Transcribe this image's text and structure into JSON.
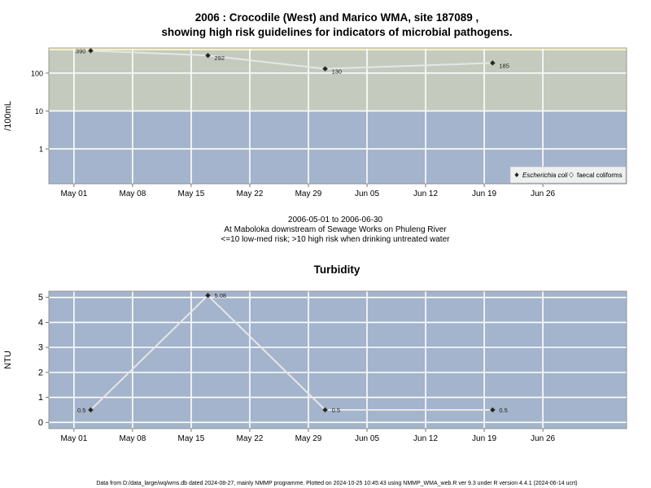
{
  "title_line1": "2006 : Crocodile (West) and Marico WMA, site 187089 ,",
  "title_line2": "showing high risk guidelines for indicators of microbial pathogens.",
  "subtitle": {
    "date_range": "2006-05-01 to 2006-06-30",
    "location": "At Maboloka downstream of Sewage Works on Phuleng River",
    "guideline": "<=10 low-med risk; >10 high risk when drinking untreated water"
  },
  "footer": "Data from D:/data_large/wq/wms.db dated 2024-08-27, mainly NMMP programme. Plotted on 2024-10-25 10:45:43 using NMMP_WMA_web.R ver 9.3 under R version 4.4.1 (2024-06-14 ucrt)",
  "colors": {
    "low_band": "#a3b4cc",
    "mid_band": "#c4cbbe",
    "high_band": "#f5f0c8",
    "line": "#e6e6e6",
    "grid": "#ffffff"
  },
  "chart_data": [
    {
      "type": "line",
      "ylabel": "/100mL",
      "yscale": "log",
      "yticks": [
        1,
        10,
        100
      ],
      "ytick_labels": [
        "1",
        "10",
        "100"
      ],
      "ylim": [
        0.12,
        460
      ],
      "xlim": [
        "2006-04-28",
        "2006-07-06"
      ],
      "xticks": [
        "2006-05-01",
        "2006-05-08",
        "2006-05-15",
        "2006-05-22",
        "2006-05-29",
        "2006-06-05",
        "2006-06-12",
        "2006-06-19",
        "2006-06-26"
      ],
      "xtick_labels": [
        "May 01",
        "May 08",
        "May 15",
        "May 22",
        "May 29",
        "Jun 05",
        "Jun 12",
        "Jun 19",
        "Jun 26"
      ],
      "bands": [
        {
          "from": 0.12,
          "to": 10,
          "color": "#a3b4cc"
        },
        {
          "from": 10,
          "to": 400,
          "color": "#c4cbbe"
        },
        {
          "from": 400,
          "to": 460,
          "color": "#f5f0c8"
        }
      ],
      "series": [
        {
          "name": "Escherichia coli",
          "x": [
            "2006-05-03",
            "2006-05-17",
            "2006-05-31",
            "2006-06-20"
          ],
          "y": [
            390,
            292,
            130,
            185
          ],
          "labels": [
            "390",
            "292",
            "130",
            "185"
          ]
        }
      ],
      "legend": {
        "position": "bottom-right",
        "entries": [
          "Escherichia coli",
          "faecal coliforms"
        ]
      }
    },
    {
      "type": "line",
      "title": "Turbidity",
      "ylabel": "NTU",
      "ylim": [
        -0.25,
        5.25
      ],
      "yticks": [
        0,
        1,
        2,
        3,
        4,
        5
      ],
      "ytick_labels": [
        "0",
        "1",
        "2",
        "3",
        "4",
        "5"
      ],
      "xlim": [
        "2006-04-28",
        "2006-07-06"
      ],
      "xticks": [
        "2006-05-01",
        "2006-05-08",
        "2006-05-15",
        "2006-05-22",
        "2006-05-29",
        "2006-06-05",
        "2006-06-12",
        "2006-06-19",
        "2006-06-26"
      ],
      "xtick_labels": [
        "May 01",
        "May 08",
        "May 15",
        "May 22",
        "May 29",
        "Jun 05",
        "Jun 12",
        "Jun 19",
        "Jun 26"
      ],
      "series": [
        {
          "name": "Turbidity",
          "x": [
            "2006-05-03",
            "2006-05-17",
            "2006-05-31",
            "2006-06-20"
          ],
          "y": [
            0.5,
            5.08,
            0.5,
            0.5
          ],
          "labels": [
            "0.5",
            "5.08",
            "0.5",
            "0.5"
          ]
        }
      ]
    }
  ]
}
